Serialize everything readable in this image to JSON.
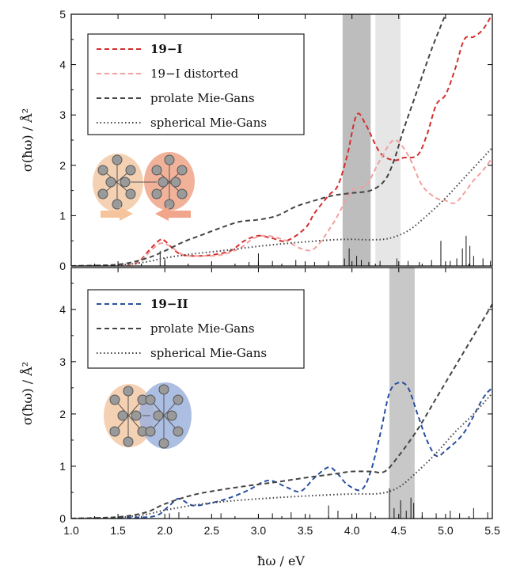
{
  "figure": {
    "xlabel": "ħω  /  eV",
    "ylabel": "σ(ħω)  /  Å²"
  },
  "chart_data": [
    {
      "type": "line",
      "panel": "top",
      "xlim": [
        1.0,
        5.5
      ],
      "ylim": [
        0,
        5
      ],
      "xticks": [
        1.0,
        1.5,
        2.0,
        2.5,
        3.0,
        3.5,
        4.0,
        4.5,
        5.0,
        5.5
      ],
      "yticks": [
        0,
        1,
        2,
        3,
        4,
        5
      ],
      "xlabel": "ħω  /  eV",
      "ylabel": "σ(ħω)  /  Å²",
      "legend_position": "top-left",
      "shaded_bands": [
        {
          "x0": 3.9,
          "x1": 4.2,
          "color": "#bdbdbd"
        },
        {
          "x0": 4.25,
          "x1": 4.52,
          "color": "#e6e6e6"
        }
      ],
      "series": [
        {
          "name": "19−I",
          "color": "#d32f2f",
          "style": "dashed",
          "x": [
            1.0,
            1.5,
            1.7,
            1.85,
            1.95,
            2.0,
            2.15,
            2.3,
            2.5,
            2.7,
            2.85,
            3.0,
            3.15,
            3.3,
            3.5,
            3.6,
            3.75,
            3.85,
            3.95,
            4.05,
            4.15,
            4.3,
            4.45,
            4.55,
            4.7,
            4.8,
            4.9,
            5.0,
            5.1,
            5.2,
            5.3,
            5.4,
            5.5
          ],
          "y": [
            0.0,
            0.01,
            0.06,
            0.35,
            0.52,
            0.5,
            0.25,
            0.2,
            0.22,
            0.3,
            0.5,
            0.6,
            0.55,
            0.5,
            0.75,
            1.05,
            1.4,
            1.6,
            2.2,
            3.0,
            2.8,
            2.25,
            2.1,
            2.15,
            2.2,
            2.6,
            3.2,
            3.4,
            3.9,
            4.5,
            4.55,
            4.7,
            5.0
          ]
        },
        {
          "name": "19−I distorted",
          "color": "#f1a09e",
          "style": "dashed",
          "x": [
            1.0,
            1.5,
            1.7,
            1.85,
            1.95,
            2.05,
            2.2,
            2.4,
            2.6,
            2.8,
            2.95,
            3.1,
            3.3,
            3.45,
            3.6,
            3.8,
            4.0,
            4.15,
            4.3,
            4.45,
            4.6,
            4.75,
            4.9,
            5.0,
            5.1,
            5.2,
            5.3,
            5.4,
            5.5
          ],
          "y": [
            0.0,
            0.01,
            0.05,
            0.3,
            0.45,
            0.4,
            0.22,
            0.2,
            0.22,
            0.35,
            0.55,
            0.6,
            0.5,
            0.35,
            0.35,
            0.85,
            1.5,
            1.6,
            2.1,
            2.5,
            2.2,
            1.6,
            1.35,
            1.3,
            1.25,
            1.45,
            1.7,
            1.9,
            2.15
          ]
        },
        {
          "name": "prolate Mie-Gans",
          "color": "#444444",
          "style": "dashed",
          "x": [
            1.0,
            1.5,
            1.8,
            2.0,
            2.2,
            2.4,
            2.6,
            2.8,
            3.0,
            3.2,
            3.4,
            3.6,
            3.8,
            4.0,
            4.2,
            4.35,
            4.45,
            4.55,
            4.7,
            4.85,
            5.0
          ],
          "y": [
            0.0,
            0.03,
            0.15,
            0.3,
            0.48,
            0.62,
            0.76,
            0.88,
            0.92,
            1.0,
            1.18,
            1.3,
            1.4,
            1.45,
            1.5,
            1.7,
            2.1,
            2.7,
            3.5,
            4.3,
            5.0
          ]
        },
        {
          "name": "spherical Mie-Gans",
          "color": "#444444",
          "style": "dotted",
          "x": [
            1.0,
            1.5,
            1.8,
            2.0,
            2.3,
            2.6,
            2.9,
            3.2,
            3.5,
            3.8,
            4.0,
            4.2,
            4.4,
            4.6,
            4.8,
            5.0,
            5.2,
            5.4,
            5.5
          ],
          "y": [
            0.0,
            0.02,
            0.08,
            0.16,
            0.24,
            0.3,
            0.37,
            0.43,
            0.48,
            0.52,
            0.53,
            0.52,
            0.55,
            0.7,
            1.0,
            1.35,
            1.75,
            2.15,
            2.35
          ]
        }
      ],
      "sticks": [
        {
          "x": 1.95,
          "h": 0.3
        },
        {
          "x": 2.0,
          "h": 0.15
        },
        {
          "x": 2.9,
          "h": 0.08
        },
        {
          "x": 3.0,
          "h": 0.25
        },
        {
          "x": 3.15,
          "h": 0.1
        },
        {
          "x": 3.4,
          "h": 0.12
        },
        {
          "x": 3.6,
          "h": 0.08
        },
        {
          "x": 3.75,
          "h": 0.1
        },
        {
          "x": 3.92,
          "h": 0.15
        },
        {
          "x": 3.97,
          "h": 0.35
        },
        {
          "x": 4.05,
          "h": 0.2
        },
        {
          "x": 4.1,
          "h": 0.12
        },
        {
          "x": 4.18,
          "h": 0.08
        },
        {
          "x": 4.3,
          "h": 0.1
        },
        {
          "x": 4.48,
          "h": 0.15
        },
        {
          "x": 4.6,
          "h": 0.1
        },
        {
          "x": 4.72,
          "h": 0.08
        },
        {
          "x": 4.85,
          "h": 0.12
        },
        {
          "x": 4.95,
          "h": 0.5
        },
        {
          "x": 5.05,
          "h": 0.1
        },
        {
          "x": 5.12,
          "h": 0.15
        },
        {
          "x": 5.18,
          "h": 0.35
        },
        {
          "x": 5.22,
          "h": 0.6
        },
        {
          "x": 5.26,
          "h": 0.4
        },
        {
          "x": 5.3,
          "h": 0.2
        },
        {
          "x": 5.4,
          "h": 0.15
        },
        {
          "x": 5.48,
          "h": 0.1
        }
      ]
    },
    {
      "type": "line",
      "panel": "bottom",
      "xlim": [
        1.0,
        5.5
      ],
      "ylim": [
        0,
        4.8
      ],
      "xticks": [
        1.0,
        1.5,
        2.0,
        2.5,
        3.0,
        3.5,
        4.0,
        4.5,
        5.0,
        5.5
      ],
      "yticks": [
        0,
        1,
        2,
        3,
        4
      ],
      "xlabel": "ħω  /  eV",
      "ylabel": "σ(ħω)  /  Å²",
      "legend_position": "top-left",
      "shaded_bands": [
        {
          "x0": 4.4,
          "x1": 4.67,
          "color": "#c8c8c8"
        }
      ],
      "series": [
        {
          "name": "19−II",
          "color": "#2a4fa0",
          "style": "dashed",
          "x": [
            1.0,
            1.6,
            1.9,
            2.05,
            2.15,
            2.3,
            2.5,
            2.7,
            2.9,
            3.05,
            3.15,
            3.3,
            3.45,
            3.6,
            3.75,
            3.85,
            3.95,
            4.1,
            4.2,
            4.3,
            4.4,
            4.5,
            4.6,
            4.7,
            4.8,
            4.9,
            5.0,
            5.2,
            5.4,
            5.5
          ],
          "y": [
            0.0,
            0.02,
            0.05,
            0.25,
            0.38,
            0.25,
            0.3,
            0.4,
            0.55,
            0.7,
            0.72,
            0.6,
            0.52,
            0.78,
            0.98,
            0.85,
            0.65,
            0.55,
            0.9,
            1.6,
            2.4,
            2.6,
            2.5,
            2.0,
            1.5,
            1.2,
            1.3,
            1.65,
            2.3,
            2.5
          ]
        },
        {
          "name": "prolate Mie-Gans",
          "color": "#444444",
          "style": "dashed",
          "x": [
            1.0,
            1.5,
            1.8,
            2.0,
            2.3,
            2.6,
            2.9,
            3.2,
            3.5,
            3.8,
            4.0,
            4.2,
            4.35,
            4.5,
            4.7,
            4.9,
            5.1,
            5.3,
            5.5
          ],
          "y": [
            0.0,
            0.03,
            0.12,
            0.28,
            0.45,
            0.55,
            0.63,
            0.7,
            0.78,
            0.85,
            0.9,
            0.9,
            0.9,
            1.2,
            1.7,
            2.3,
            2.9,
            3.5,
            4.1
          ]
        },
        {
          "name": "spherical Mie-Gans",
          "color": "#444444",
          "style": "dotted",
          "x": [
            1.0,
            1.5,
            1.8,
            2.0,
            2.4,
            2.8,
            3.2,
            3.6,
            4.0,
            4.3,
            4.5,
            4.7,
            4.9,
            5.1,
            5.3,
            5.5
          ],
          "y": [
            0.0,
            0.02,
            0.08,
            0.16,
            0.28,
            0.35,
            0.4,
            0.44,
            0.47,
            0.48,
            0.6,
            0.9,
            1.25,
            1.65,
            2.0,
            2.4
          ]
        }
      ],
      "sticks": [
        {
          "x": 2.05,
          "h": 0.1
        },
        {
          "x": 2.15,
          "h": 0.12
        },
        {
          "x": 2.6,
          "h": 0.1
        },
        {
          "x": 3.0,
          "h": 0.08
        },
        {
          "x": 3.15,
          "h": 0.1
        },
        {
          "x": 3.35,
          "h": 0.12
        },
        {
          "x": 3.55,
          "h": 0.08
        },
        {
          "x": 3.75,
          "h": 0.25
        },
        {
          "x": 3.85,
          "h": 0.15
        },
        {
          "x": 4.05,
          "h": 0.1
        },
        {
          "x": 4.2,
          "h": 0.12
        },
        {
          "x": 4.4,
          "h": 0.58
        },
        {
          "x": 4.45,
          "h": 0.2
        },
        {
          "x": 4.52,
          "h": 0.35
        },
        {
          "x": 4.58,
          "h": 0.15
        },
        {
          "x": 4.63,
          "h": 0.4
        },
        {
          "x": 4.66,
          "h": 0.3
        },
        {
          "x": 4.75,
          "h": 0.12
        },
        {
          "x": 4.9,
          "h": 0.1
        },
        {
          "x": 5.05,
          "h": 0.15
        },
        {
          "x": 5.15,
          "h": 0.1
        },
        {
          "x": 5.3,
          "h": 0.2
        },
        {
          "x": 5.45,
          "h": 0.12
        }
      ]
    }
  ],
  "icons": {
    "top_inset": "dimer-cluster-icon",
    "bottom_inset": "fused-cluster-icon"
  }
}
